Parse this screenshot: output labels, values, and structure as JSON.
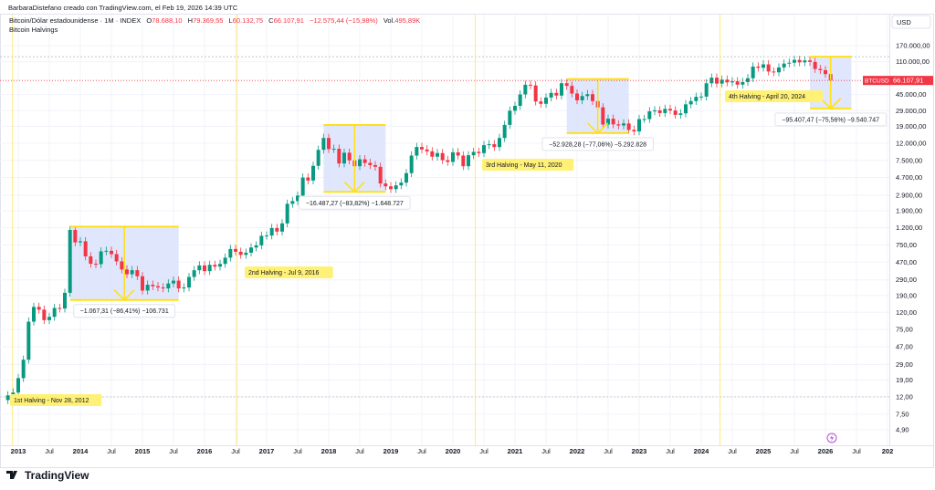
{
  "header": {
    "credit": "BarbaraDistefano creado con TradingView.com, el Feb 19, 2026 14:39 UTC"
  },
  "legend": {
    "symbol": "Bitcoin/Dólar estadounidense · 1M · INDEX",
    "open_label": "O",
    "open": "78.688,10",
    "high_label": "H",
    "high": "79.369,55",
    "low_label": "L",
    "low": "60.132,75",
    "close_label": "C",
    "close": "66.107,91",
    "change": "−12.575,44 (−15,98%)",
    "vol_label": "Vol.",
    "vol": "495,89K",
    "indicator": "Bitcoin Halvings"
  },
  "price_axis": {
    "currency": "USD",
    "ticks": [
      "170.000,00",
      "110.000,00",
      "45.000,00",
      "29.000,00",
      "19.000,00",
      "12.000,00",
      "7.500,00",
      "4.700,00",
      "2.900,00",
      "1.900,00",
      "1.200,00",
      "750,00",
      "470,00",
      "290,00",
      "190,00",
      "120,00",
      "75,00",
      "47,00",
      "29,00",
      "19,00",
      "12,00",
      "7,50",
      "4,90"
    ],
    "tick_values": [
      170000,
      110000,
      45000,
      29000,
      19000,
      12000,
      7500,
      4700,
      2900,
      1900,
      1200,
      750,
      470,
      290,
      190,
      120,
      75,
      47,
      29,
      19,
      12,
      7.5,
      4.9
    ],
    "last_symbol": "BTCUSD",
    "last_price": "66.107,91"
  },
  "time_axis": {
    "labels": [
      "2013",
      "Jul",
      "2014",
      "Jul",
      "2015",
      "Jul",
      "2016",
      "Jul",
      "2017",
      "Jul",
      "2018",
      "Jul",
      "2019",
      "Jul",
      "2020",
      "Jul",
      "2021",
      "Jul",
      "2022",
      "Jul",
      "2023",
      "Jul",
      "2024",
      "Jul",
      "2025",
      "Jul",
      "2026",
      "Jul",
      "202"
    ]
  },
  "colors": {
    "up": "#089981",
    "down": "#f23645",
    "halving_line": "#ffe97a",
    "halving_label_bg": "#fff176",
    "measure_fill": "#dbe3fb",
    "measure_line": "#ffe01b",
    "price_label": "#f23645"
  },
  "chart_data": {
    "type": "candlestick",
    "interval": "1M",
    "scale": "log",
    "start_month": "2012-11",
    "first_open": 11,
    "closes": [
      12.5,
      13.5,
      20,
      33,
      93,
      139,
      129,
      97,
      106,
      135,
      133,
      204,
      1130,
      805,
      830,
      550,
      450,
      445,
      630,
      640,
      585,
      480,
      385,
      338,
      378,
      320,
      217,
      254,
      244,
      236,
      230,
      263,
      284,
      230,
      236,
      314,
      377,
      430,
      368,
      437,
      416,
      448,
      531,
      673,
      624,
      573,
      608,
      700,
      742,
      963,
      970,
      1190,
      1080,
      1350,
      2300,
      2480,
      2875,
      4700,
      4340,
      6470,
      10000,
      13800,
      10200,
      10300,
      6900,
      9240,
      7500,
      6400,
      7730,
      7000,
      6600,
      6300,
      4000,
      3700,
      3430,
      3800,
      4100,
      5300,
      8550,
      10800,
      10100,
      9600,
      8300,
      9150,
      7550,
      7200,
      9350,
      8550,
      6400,
      8630,
      9450,
      9140,
      11350,
      11650,
      10780,
      13800,
      19700,
      29000,
      33100,
      45200,
      58800,
      57700,
      37300,
      35000,
      41500,
      47100,
      43800,
      61300,
      57000,
      46300,
      38500,
      43200,
      45500,
      37700,
      31800,
      19900,
      23300,
      20000,
      19400,
      20500,
      17200,
      16500,
      23100,
      23100,
      28500,
      29300,
      27200,
      30500,
      29200,
      25900,
      27000,
      34500,
      37700,
      42300,
      42600,
      61200,
      71300,
      60700,
      67500,
      62700,
      64600,
      59000,
      63300,
      70200,
      96400,
      93400,
      102400,
      84300,
      82500,
      94200,
      104600,
      107100,
      115700,
      108200,
      114000,
      109500,
      90400,
      87500,
      78688.1,
      66107.91
    ],
    "halvings": [
      {
        "label": "1st Halving - Nov 28, 2012",
        "date": "2012-11-28"
      },
      {
        "label": "2nd Halving - Jul 9, 2016",
        "date": "2016-07-09"
      },
      {
        "label": "3rd Halving - May 11, 2020",
        "date": "2020-05-11"
      },
      {
        "label": "4th Halving - April 20, 2024",
        "date": "2024-04-20"
      }
    ],
    "measurements": [
      {
        "label": "−1.067,31 (−86,41%) −106.731",
        "from": "2013-11",
        "to": "2015-08",
        "high": 1235,
        "low": 168
      },
      {
        "label": "−16.487,27 (−83,82%) −1.648.727",
        "from": "2017-12",
        "to": "2018-12",
        "high": 19670,
        "low": 3183
      },
      {
        "label": "−52.928,28 (−77,06%) −5.292.828",
        "from": "2021-11",
        "to": "2022-11",
        "high": 68684,
        "low": 15756
      },
      {
        "label": "−95.407,47 (−75,56%) −9.540.747",
        "from": "2025-10",
        "to": "2026-06",
        "high": 126268,
        "low": 30861
      }
    ],
    "reference_levels": [
      126268,
      12
    ]
  },
  "footer": {
    "brand": "TradingView"
  }
}
